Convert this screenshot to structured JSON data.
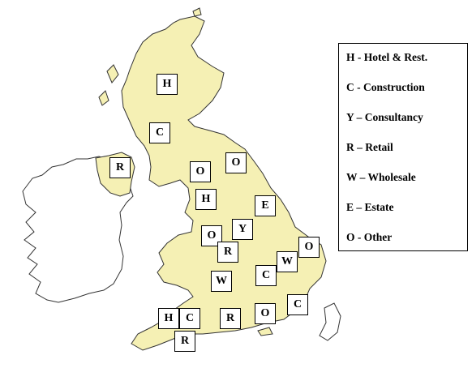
{
  "map": {
    "colors": {
      "gb": "#f5f0b4",
      "ireland": "#ffffff",
      "outline": "#333333"
    },
    "markers": [
      "H",
      "C",
      "R",
      "O",
      "O",
      "H",
      "E",
      "Y",
      "O",
      "R",
      "W",
      "O",
      "C",
      "W",
      "C",
      "O",
      "R",
      "H",
      "C",
      "R"
    ]
  },
  "legend": {
    "items": [
      "H - Hotel & Rest.",
      "C - Construction",
      "Y – Consultancy",
      "R – Retail",
      "W – Wholesale",
      "E – Estate",
      "O - Other"
    ]
  }
}
